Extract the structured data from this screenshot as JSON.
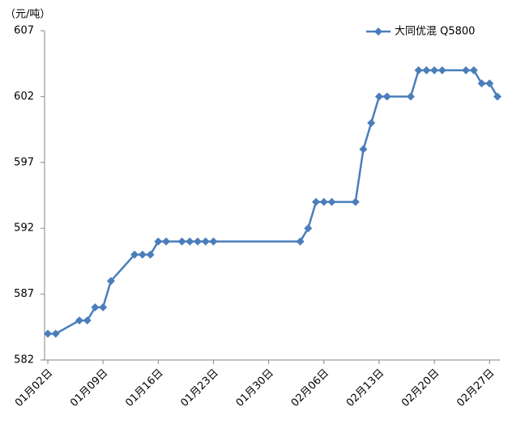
{
  "chart_data": {
    "type": "line",
    "unit_label": "（元/吨）",
    "x": [
      "01-02",
      "01-03",
      "01-06",
      "01-07",
      "01-08",
      "01-09",
      "01-10",
      "01-13",
      "01-14",
      "01-15",
      "01-16",
      "01-17",
      "01-19",
      "01-20",
      "01-21",
      "01-22",
      "01-23",
      "02-03",
      "02-04",
      "02-05",
      "02-06",
      "02-07",
      "02-10",
      "02-11",
      "02-12",
      "02-13",
      "02-14",
      "02-17",
      "02-18",
      "02-19",
      "02-20",
      "02-21",
      "02-24",
      "02-25",
      "02-26",
      "02-27",
      "02-28"
    ],
    "series": [
      {
        "name": "大同优混 Q5800",
        "color": "#4a7ebb",
        "values": [
          584,
          584,
          585,
          585,
          586,
          586,
          588,
          590,
          590,
          590,
          591,
          591,
          591,
          591,
          591,
          591,
          591,
          591,
          592,
          594,
          594,
          594,
          594,
          598,
          600,
          602,
          602,
          602,
          604,
          604,
          604,
          604,
          604,
          604,
          603,
          603,
          602
        ]
      }
    ],
    "xlim": [
      "01-02",
      "02-28"
    ],
    "xticks": [
      {
        "value": "01-02",
        "label": "01月02日"
      },
      {
        "value": "01-09",
        "label": "01月09日"
      },
      {
        "value": "01-16",
        "label": "01月16日"
      },
      {
        "value": "01-23",
        "label": "01月23日"
      },
      {
        "value": "01-30",
        "label": "01月30日"
      },
      {
        "value": "02-06",
        "label": "02月06日"
      },
      {
        "value": "02-13",
        "label": "02月13日"
      },
      {
        "value": "02-20",
        "label": "02月20日"
      },
      {
        "value": "02-27",
        "label": "02月27日"
      }
    ],
    "ylim": [
      582,
      607
    ],
    "yticks": [
      582,
      587,
      592,
      597,
      602,
      607
    ],
    "grid": false,
    "legend_position": "top-right"
  }
}
